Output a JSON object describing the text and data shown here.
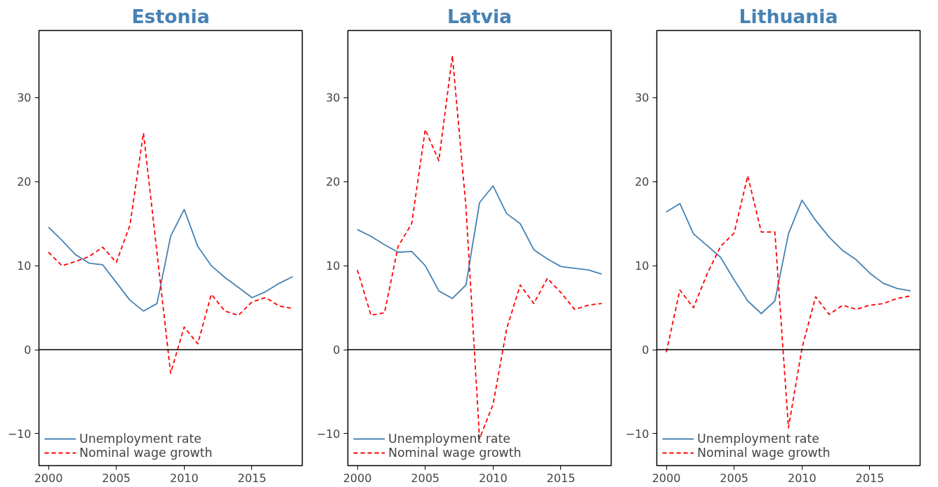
{
  "chart_data": [
    {
      "type": "line",
      "title": "Estonia",
      "x": [
        2000,
        2001,
        2002,
        2003,
        2004,
        2005,
        2006,
        2007,
        2008,
        2009,
        2010,
        2011,
        2012,
        2013,
        2014,
        2015,
        2016,
        2017,
        2018
      ],
      "xlim": [
        1999.3,
        2018.7
      ],
      "ylim": [
        -13.8,
        38
      ],
      "xticks": [
        2000,
        2005,
        2010,
        2015
      ],
      "yticks": [
        -10,
        0,
        10,
        20,
        30
      ],
      "grid": false,
      "legend": "bottom left",
      "ref_lines": [
        {
          "axis": "y",
          "value": 0,
          "color": "#000000"
        }
      ],
      "series": [
        {
          "name": "Unemployment rate",
          "color": "#4682b4",
          "line_style": "solid",
          "values": [
            14.6,
            13.0,
            11.3,
            10.3,
            10.1,
            8.0,
            5.9,
            4.6,
            5.5,
            13.5,
            16.7,
            12.3,
            10.0,
            8.6,
            7.4,
            6.2,
            6.9,
            7.9,
            8.7
          ]
        },
        {
          "name": "Nominal wage growth",
          "color": "#ff0000",
          "line_style": "dashed",
          "values": [
            11.6,
            10.0,
            10.5,
            11.1,
            12.2,
            10.4,
            14.8,
            25.8,
            11.5,
            -2.8,
            2.7,
            0.7,
            6.6,
            4.6,
            4.1,
            5.7,
            6.2,
            5.2,
            4.9
          ]
        }
      ]
    },
    {
      "type": "line",
      "title": "Latvia",
      "x": [
        2000,
        2001,
        2002,
        2003,
        2004,
        2005,
        2006,
        2007,
        2008,
        2009,
        2010,
        2011,
        2012,
        2013,
        2014,
        2015,
        2016,
        2017,
        2018
      ],
      "xlim": [
        1999.3,
        2018.7
      ],
      "ylim": [
        -13.8,
        38
      ],
      "xticks": [
        2000,
        2005,
        2010,
        2015
      ],
      "yticks": [
        -10,
        0,
        10,
        20,
        30
      ],
      "grid": false,
      "legend": "bottom left",
      "ref_lines": [
        {
          "axis": "y",
          "value": 0,
          "color": "#000000"
        }
      ],
      "series": [
        {
          "name": "Unemployment rate",
          "color": "#4682b4",
          "line_style": "solid",
          "values": [
            14.3,
            13.5,
            12.5,
            11.6,
            11.7,
            10.0,
            7.0,
            6.1,
            7.7,
            17.5,
            19.5,
            16.2,
            15.0,
            11.9,
            10.8,
            9.9,
            9.7,
            9.5,
            9.0
          ]
        },
        {
          "name": "Nominal wage growth",
          "color": "#ff0000",
          "line_style": "dashed",
          "values": [
            9.5,
            4.1,
            4.4,
            12.3,
            15.0,
            26.2,
            22.5,
            35.0,
            17.0,
            -10.6,
            -6.5,
            2.5,
            7.7,
            5.5,
            8.5,
            6.8,
            4.8,
            5.3,
            5.5
          ]
        }
      ]
    },
    {
      "type": "line",
      "title": "Lithuania",
      "x": [
        2000,
        2001,
        2002,
        2003,
        2004,
        2005,
        2006,
        2007,
        2008,
        2009,
        2010,
        2011,
        2012,
        2013,
        2014,
        2015,
        2016,
        2017,
        2018
      ],
      "xlim": [
        1999.3,
        2018.7
      ],
      "ylim": [
        -13.8,
        38
      ],
      "xticks": [
        2000,
        2005,
        2010,
        2015
      ],
      "yticks": [
        -10,
        0,
        10,
        20,
        30
      ],
      "grid": false,
      "legend": "bottom left",
      "ref_lines": [
        {
          "axis": "y",
          "value": 0,
          "color": "#000000"
        }
      ],
      "series": [
        {
          "name": "Unemployment rate",
          "color": "#4682b4",
          "line_style": "solid",
          "values": [
            16.4,
            17.4,
            13.8,
            12.4,
            11.0,
            8.3,
            5.8,
            4.3,
            5.8,
            13.8,
            17.8,
            15.4,
            13.4,
            11.8,
            10.7,
            9.1,
            7.9,
            7.3,
            7.0
          ]
        },
        {
          "name": "Nominal wage growth",
          "color": "#ff0000",
          "line_style": "dashed",
          "values": [
            -0.3,
            7.1,
            5.0,
            9.0,
            12.3,
            13.9,
            20.7,
            14.0,
            14.0,
            -9.3,
            0.2,
            6.3,
            4.2,
            5.3,
            4.8,
            5.3,
            5.5,
            6.1,
            6.4
          ]
        }
      ]
    }
  ]
}
